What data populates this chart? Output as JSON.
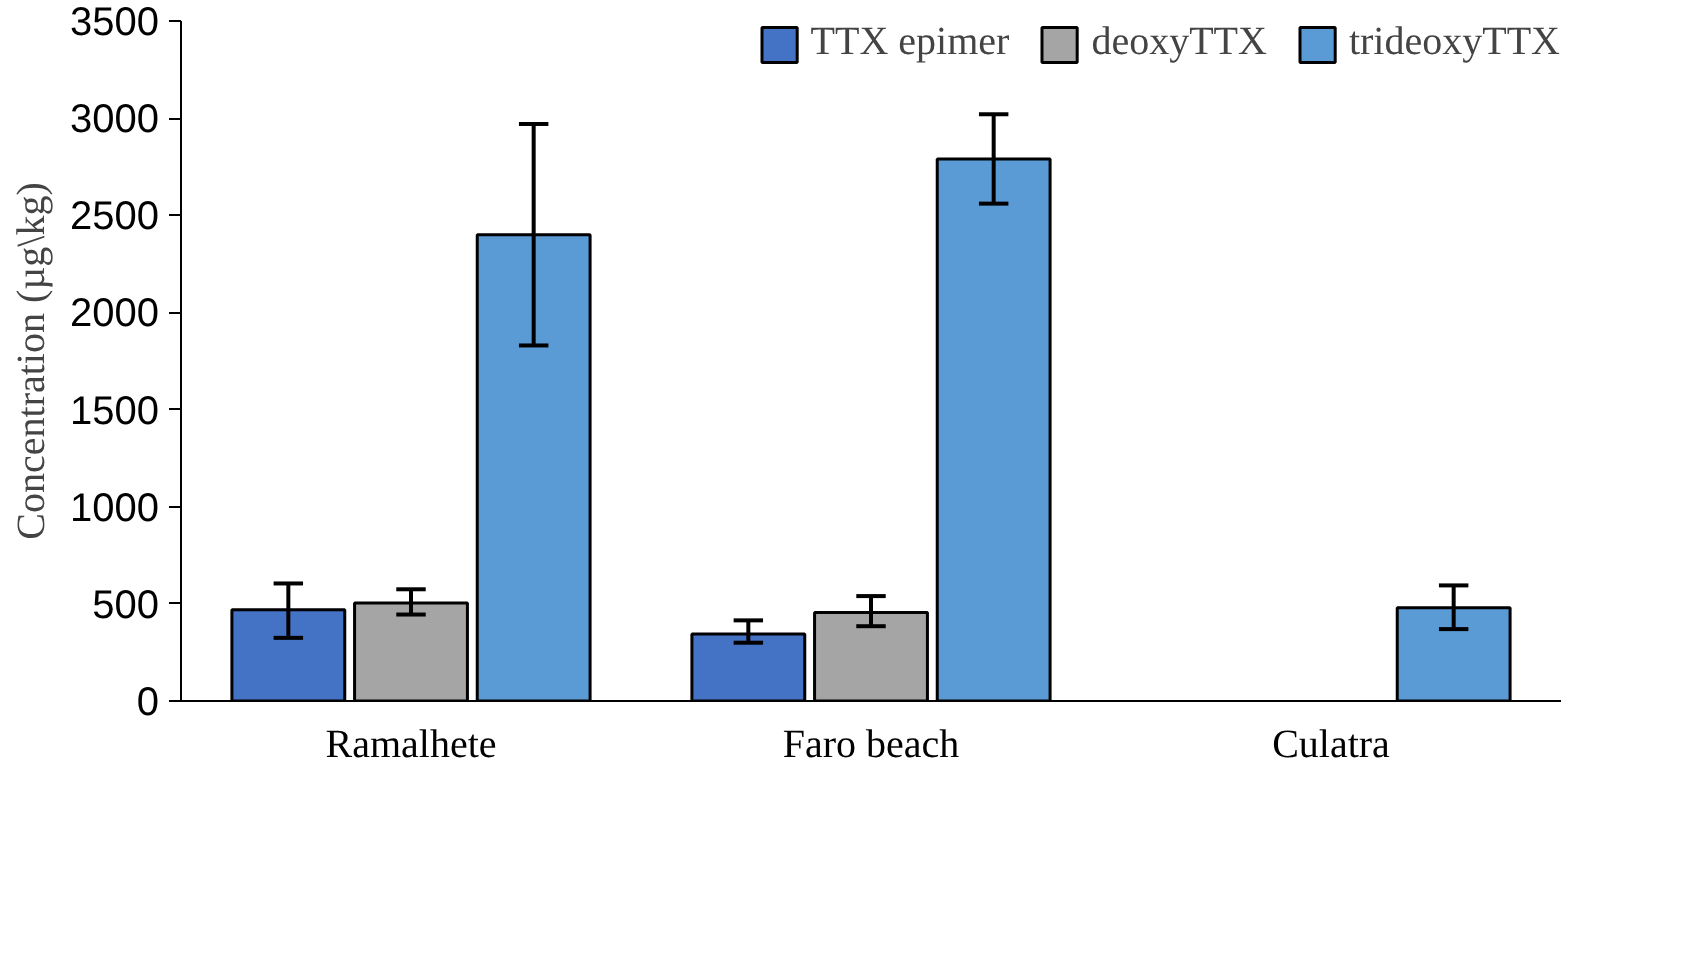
{
  "chart_data": {
    "type": "bar",
    "ylabel": "Concentration (µg\\kg)",
    "categories": [
      "Ramalhete",
      "Faro beach",
      "Culatra"
    ],
    "series": [
      {
        "name": "TTX epimer",
        "color": "#4472c4",
        "values": [
          470,
          345,
          null
        ],
        "errors": [
          [
            325,
            605
          ],
          [
            300,
            415
          ],
          null
        ]
      },
      {
        "name": "deoxyTTX",
        "color": "#a5a5a5",
        "values": [
          505,
          455,
          null
        ],
        "errors": [
          [
            445,
            575
          ],
          [
            385,
            540
          ],
          null
        ]
      },
      {
        "name": "trideoxyTTX",
        "color": "#5b9bd5",
        "values": [
          2400,
          2790,
          480
        ],
        "errors": [
          [
            1830,
            2970
          ],
          [
            2560,
            3020
          ],
          [
            370,
            595
          ]
        ]
      }
    ],
    "ylim": [
      0,
      3500
    ],
    "yticks": [
      0,
      500,
      1000,
      1500,
      2000,
      2500,
      3000,
      3500
    ],
    "grid": false,
    "legend": "top"
  }
}
